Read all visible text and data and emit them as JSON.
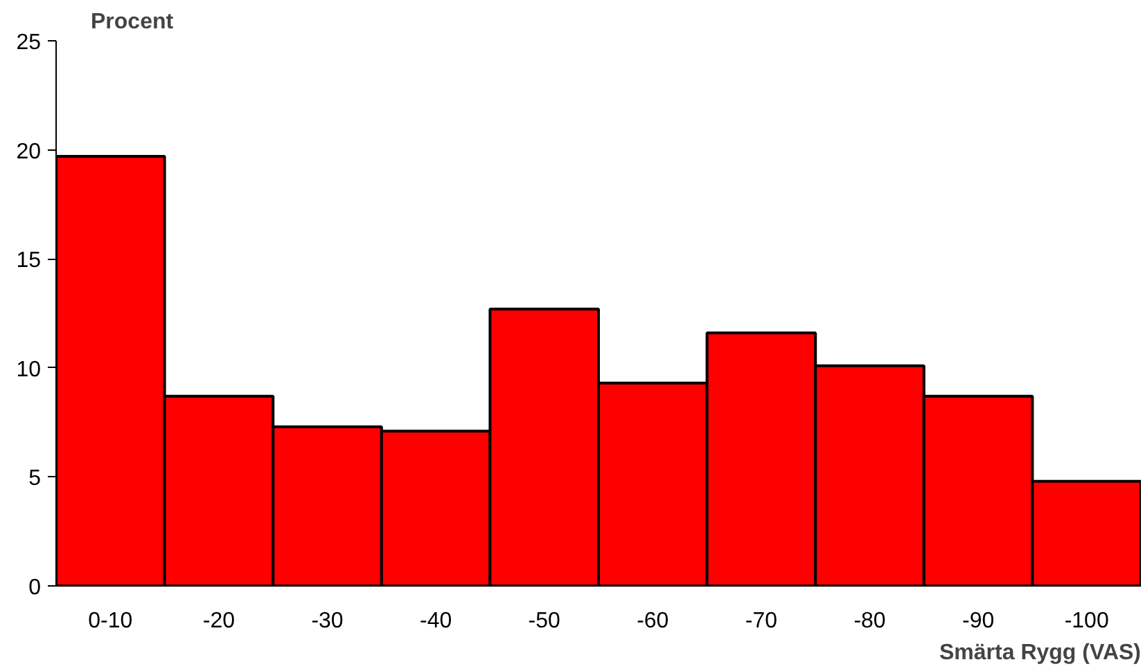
{
  "chart_data": {
    "type": "bar",
    "ylabel": "Procent",
    "xlabel": "Smärta Rygg (VAS)",
    "categories": [
      "0-10",
      "-20",
      "-30",
      "-40",
      "-50",
      "-60",
      "-70",
      "-80",
      "-90",
      "-100"
    ],
    "values": [
      19.7,
      8.7,
      7.3,
      7.1,
      12.7,
      9.3,
      11.6,
      10.1,
      8.7,
      4.8
    ],
    "color": "#ff0000",
    "ylim": [
      0,
      25
    ],
    "yticks": [
      0,
      5,
      10,
      15,
      20,
      25
    ],
    "grid": false
  }
}
